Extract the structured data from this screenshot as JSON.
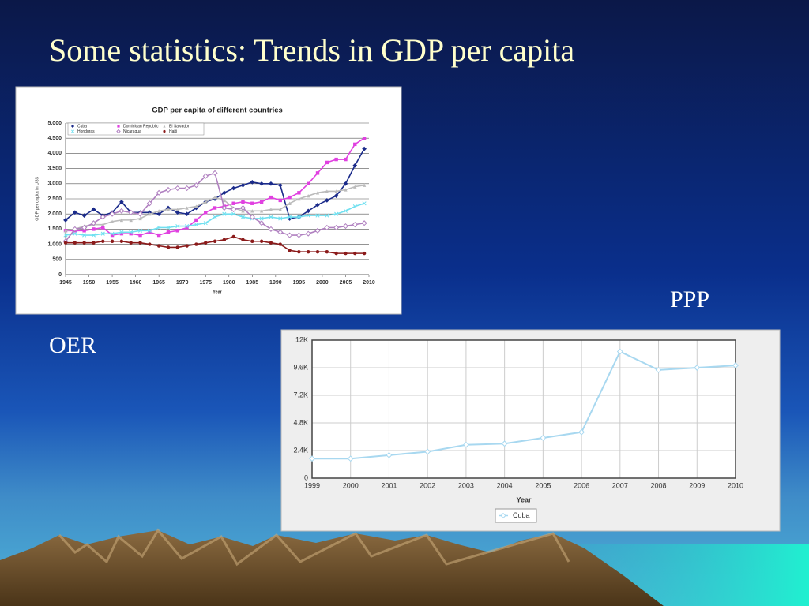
{
  "slide": {
    "title": "Some statistics: Trends in GDP per capita",
    "labels": [
      "PPP",
      "OER"
    ]
  },
  "chart_data": [
    {
      "type": "line",
      "title": "GDP per capita of different countries",
      "x_label": "Year",
      "y_label": "GDP per capita in US$",
      "x": [
        1945,
        1947,
        1949,
        1951,
        1953,
        1955,
        1957,
        1959,
        1961,
        1963,
        1965,
        1967,
        1969,
        1971,
        1973,
        1975,
        1977,
        1979,
        1981,
        1983,
        1985,
        1987,
        1989,
        1991,
        1993,
        1995,
        1997,
        1999,
        2001,
        2003,
        2005,
        2007,
        2009
      ],
      "xlim": [
        1945,
        2010
      ],
      "xticks": [
        1945,
        1950,
        1955,
        1960,
        1965,
        1970,
        1975,
        1980,
        1985,
        1990,
        1995,
        2000,
        2005,
        2010
      ],
      "ylim": [
        0,
        5000
      ],
      "yticks": [
        0,
        500,
        {
          "value": 1000,
          "label": "1.000"
        },
        {
          "value": 1500,
          "label": "1.500"
        },
        {
          "value": 2000,
          "label": "2.000"
        },
        {
          "value": 2500,
          "label": "2.500"
        },
        {
          "value": 3000,
          "label": "3.000"
        },
        {
          "value": 3500,
          "label": "3.500"
        },
        {
          "value": 4000,
          "label": "4.000"
        },
        {
          "value": 4500,
          "label": "4.500"
        },
        {
          "value": 5000,
          "label": "5.000"
        }
      ],
      "grid": true,
      "legend": "top-left",
      "series": [
        {
          "name": "Cuba",
          "color": "#1a2a8a",
          "marker": "diamond",
          "values": [
            1800,
            2050,
            1950,
            2150,
            1950,
            2050,
            2400,
            2050,
            2050,
            2050,
            2000,
            2200,
            2050,
            2000,
            2200,
            2400,
            2500,
            2700,
            2850,
            2950,
            3050,
            3000,
            3000,
            2950,
            1850,
            1900,
            2100,
            2300,
            2450,
            2600,
            3000,
            3600,
            4150
          ]
        },
        {
          "name": "Dominican Republic",
          "color": "#e040e0",
          "marker": "square",
          "values": [
            1450,
            1450,
            1450,
            1500,
            1550,
            1300,
            1350,
            1350,
            1300,
            1400,
            1300,
            1400,
            1450,
            1550,
            1800,
            2050,
            2200,
            2250,
            2350,
            2400,
            2350,
            2400,
            2550,
            2450,
            2550,
            2700,
            3000,
            3350,
            3700,
            3800,
            3800,
            4300,
            4500
          ]
        },
        {
          "name": "El Salvador",
          "color": "#bbbbbb",
          "marker": "triangle",
          "values": [
            1450,
            1500,
            1600,
            1650,
            1650,
            1750,
            1800,
            1800,
            1850,
            2000,
            2100,
            2150,
            2150,
            2200,
            2250,
            2400,
            2550,
            2450,
            2200,
            2100,
            2100,
            2100,
            2150,
            2150,
            2350,
            2500,
            2600,
            2700,
            2750,
            2750,
            2800,
            2900,
            2950
          ]
        },
        {
          "name": "Honduras",
          "color": "#70e0f0",
          "marker": "x",
          "values": [
            1300,
            1350,
            1300,
            1300,
            1350,
            1350,
            1400,
            1400,
            1450,
            1450,
            1550,
            1550,
            1600,
            1600,
            1650,
            1700,
            1900,
            2000,
            2000,
            1900,
            1850,
            1850,
            1900,
            1850,
            1900,
            1900,
            1950,
            1950,
            1950,
            2000,
            2100,
            2250,
            2350
          ]
        },
        {
          "name": "Nicaragua",
          "color": "#b080c0",
          "marker": "diamond-open",
          "values": [
            1100,
            1500,
            1550,
            1700,
            1900,
            2000,
            2100,
            2050,
            2000,
            2350,
            2700,
            2800,
            2850,
            2850,
            2950,
            3250,
            3350,
            2200,
            2150,
            2200,
            1900,
            1700,
            1500,
            1400,
            1300,
            1300,
            1350,
            1450,
            1550,
            1550,
            1600,
            1650,
            1700
          ]
        },
        {
          "name": "Haiti",
          "color": "#8b1a1a",
          "marker": "circle",
          "values": [
            1050,
            1050,
            1050,
            1050,
            1100,
            1100,
            1100,
            1050,
            1050,
            1000,
            950,
            900,
            900,
            950,
            1000,
            1050,
            1100,
            1150,
            1250,
            1150,
            1100,
            1100,
            1050,
            1000,
            800,
            750,
            750,
            750,
            750,
            700,
            700,
            700,
            700
          ]
        }
      ]
    },
    {
      "type": "line",
      "x_label": "Year",
      "x": [
        1999,
        2000,
        2001,
        2002,
        2003,
        2004,
        2005,
        2006,
        2007,
        2008,
        2009,
        2010
      ],
      "xlim": [
        1999,
        2010
      ],
      "xticks": [
        1999,
        2000,
        2001,
        2002,
        2003,
        2004,
        2005,
        2006,
        2007,
        2008,
        2009,
        2010
      ],
      "ylim": [
        0,
        12000
      ],
      "yticks": [
        0,
        {
          "value": 2400,
          "label": "2.4K"
        },
        {
          "value": 4800,
          "label": "4.8K"
        },
        {
          "value": 7200,
          "label": "7.2K"
        },
        {
          "value": 9600,
          "label": "9.6K"
        },
        {
          "value": 12000,
          "label": "12K"
        }
      ],
      "grid": true,
      "legend": "bottom",
      "series": [
        {
          "name": "Cuba",
          "color": "#a8d8f0",
          "marker": "diamond-open",
          "values": [
            1700,
            1700,
            2000,
            2300,
            2900,
            3000,
            3500,
            4000,
            11000,
            9400,
            9600,
            9800
          ]
        }
      ]
    }
  ]
}
